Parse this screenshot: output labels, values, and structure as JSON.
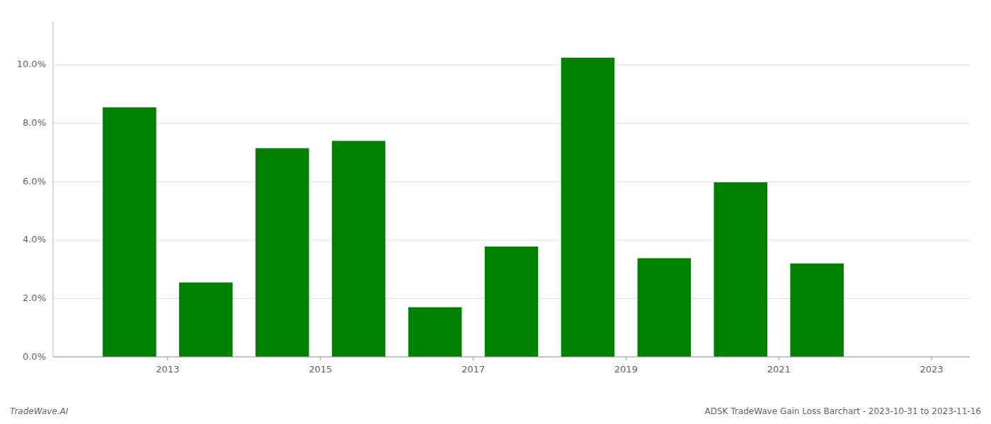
{
  "chart_data": {
    "type": "bar",
    "title": "ADSK TradeWave Gain Loss Barchart - 2023-10-31 to 2023-11-16",
    "annotations": [
      "TradeWave.AI"
    ],
    "x": [
      2012.5,
      2013.5,
      2014.5,
      2015.5,
      2016.5,
      2017.5,
      2018.5,
      2019.5,
      2020.5,
      2021.5
    ],
    "values": [
      0.0855,
      0.0255,
      0.0715,
      0.074,
      0.017,
      0.0378,
      0.1025,
      0.0338,
      0.0598,
      0.032
    ],
    "color": "#008000",
    "xlim": [
      2011.5,
      2023.5
    ],
    "xticks": [
      2013,
      2015,
      2017,
      2019,
      2021,
      2023
    ],
    "ylim": [
      0.0,
      0.115
    ],
    "yticks": [
      {
        "value": 0.0,
        "label": "0.0%"
      },
      {
        "value": 0.02,
        "label": "2.0%"
      },
      {
        "value": 0.04,
        "label": "4.0%"
      },
      {
        "value": 0.06,
        "label": "6.0%"
      },
      {
        "value": 0.08,
        "label": "8.0%"
      },
      {
        "value": 0.1,
        "label": "10.0%"
      }
    ],
    "grid": true
  }
}
